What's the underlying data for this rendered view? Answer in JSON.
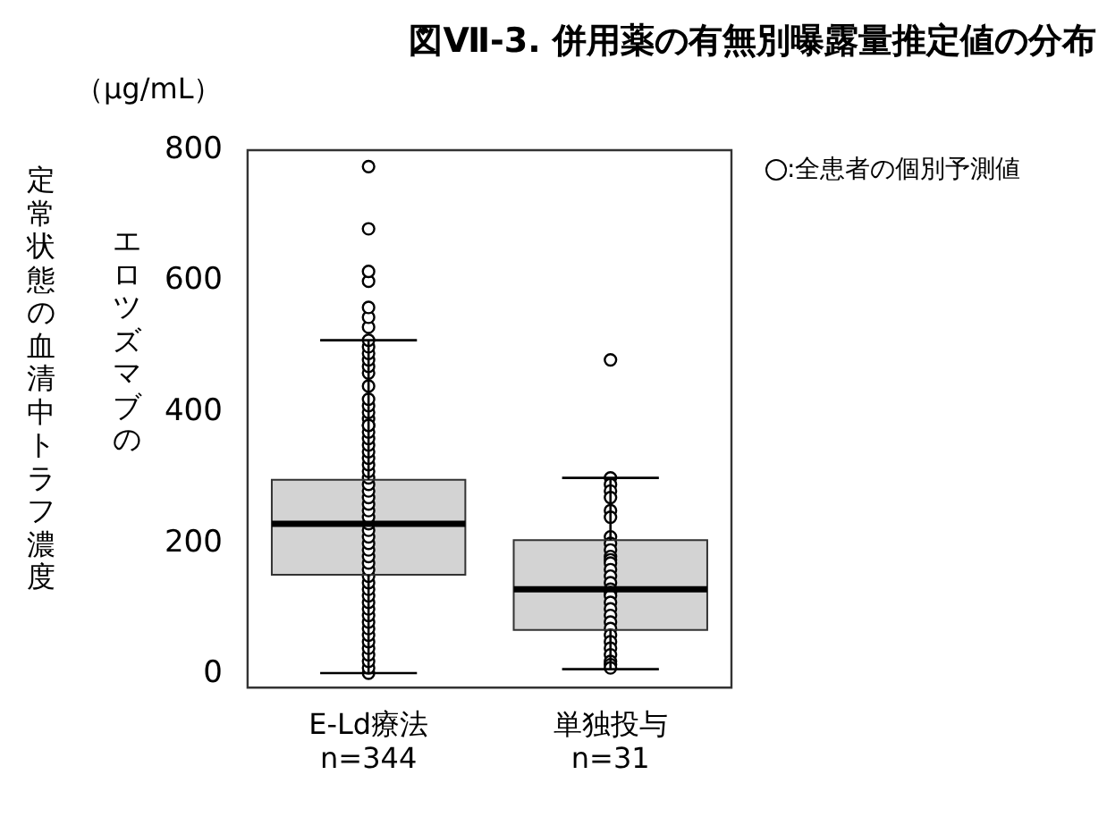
{
  "chart_data": {
    "type": "box",
    "title": "図Ⅶ-3. 併用薬の有無別曝露量推定値の分布",
    "ylabel": "定常状態の血清中トラフ濃度",
    "annotations": [
      "（μg/mL）",
      "エロツズマブの"
    ],
    "categories": [
      "E-Ld療法\nn=344",
      "単独投与\nn=31"
    ],
    "ylim": [
      -20,
      800
    ],
    "yticks": [
      0,
      200,
      400,
      600,
      800
    ],
    "grid": false,
    "legend": "top right",
    "marker": "circle",
    "boxes": [
      {
        "low": 2,
        "q1": 152,
        "median": 230,
        "q3": 297,
        "high": 510
      },
      {
        "low": 8,
        "q1": 68,
        "median": 130,
        "q3": 205,
        "high": 300
      }
    ],
    "color": "#d3d3d3",
    "series": [
      {
        "name": ":全患者の個別予測値",
        "type": "scatter",
        "color": "#000000",
        "x": [
          "E-Ld療法\nn=344",
          "E-Ld療法\nn=344",
          "E-Ld療法\nn=344",
          "E-Ld療法\nn=344",
          "E-Ld療法\nn=344",
          "E-Ld療法\nn=344",
          "E-Ld療法\nn=344",
          "E-Ld療法\nn=344",
          "E-Ld療法\nn=344",
          "E-Ld療法\nn=344",
          "E-Ld療法\nn=344",
          "E-Ld療法\nn=344",
          "E-Ld療法\nn=344",
          "E-Ld療法\nn=344",
          "E-Ld療法\nn=344",
          "E-Ld療法\nn=344",
          "E-Ld療法\nn=344",
          "E-Ld療法\nn=344",
          "E-Ld療法\nn=344",
          "E-Ld療法\nn=344",
          "E-Ld療法\nn=344",
          "E-Ld療法\nn=344",
          "E-Ld療法\nn=344",
          "E-Ld療法\nn=344",
          "E-Ld療法\nn=344",
          "E-Ld療法\nn=344",
          "E-Ld療法\nn=344",
          "E-Ld療法\nn=344",
          "E-Ld療法\nn=344",
          "E-Ld療法\nn=344",
          "E-Ld療法\nn=344",
          "E-Ld療法\nn=344",
          "E-Ld療法\nn=344",
          "E-Ld療法\nn=344",
          "E-Ld療法\nn=344",
          "E-Ld療法\nn=344",
          "E-Ld療法\nn=344",
          "E-Ld療法\nn=344",
          "E-Ld療法\nn=344",
          "E-Ld療法\nn=344",
          "E-Ld療法\nn=344",
          "E-Ld療法\nn=344",
          "E-Ld療法\nn=344",
          "E-Ld療法\nn=344",
          "E-Ld療法\nn=344",
          "E-Ld療法\nn=344",
          "E-Ld療法\nn=344",
          "E-Ld療法\nn=344",
          "E-Ld療法\nn=344",
          "E-Ld療法\nn=344",
          "E-Ld療法\nn=344",
          "E-Ld療法\nn=344",
          "E-Ld療法\nn=344",
          "E-Ld療法\nn=344",
          "E-Ld療法\nn=344",
          "E-Ld療法\nn=344",
          "E-Ld療法\nn=344",
          "E-Ld療法\nn=344",
          "単独投与\nn=31",
          "単独投与\nn=31",
          "単独投与\nn=31",
          "単独投与\nn=31",
          "単独投与\nn=31",
          "単独投与\nn=31",
          "単独投与\nn=31",
          "単独投与\nn=31",
          "単独投与\nn=31",
          "単独投与\nn=31",
          "単独投与\nn=31",
          "単独投与\nn=31",
          "単独投与\nn=31",
          "単独投与\nn=31",
          "単独投与\nn=31",
          "単独投与\nn=31",
          "単独投与\nn=31",
          "単独投与\nn=31",
          "単独投与\nn=31",
          "単独投与\nn=31",
          "単独投与\nn=31",
          "単独投与\nn=31",
          "単独投与\nn=31",
          "単独投与\nn=31",
          "単独投与\nn=31",
          "単独投与\nn=31",
          "単独投与\nn=31",
          "単独投与\nn=31",
          "単独投与\nn=31",
          "単独投与\nn=31",
          "単独投与\nn=31"
        ],
        "values": [
          2,
          10,
          20,
          30,
          40,
          50,
          60,
          70,
          80,
          90,
          100,
          110,
          120,
          130,
          140,
          150,
          160,
          170,
          180,
          190,
          200,
          210,
          220,
          230,
          240,
          250,
          260,
          270,
          280,
          290,
          300,
          310,
          320,
          330,
          340,
          350,
          360,
          370,
          380,
          390,
          400,
          410,
          420,
          440,
          460,
          470,
          480,
          490,
          500,
          510,
          530,
          545,
          560,
          600,
          615,
          680,
          775,
          380,
          480,
          300,
          290,
          280,
          270,
          250,
          240,
          210,
          200,
          190,
          180,
          175,
          170,
          160,
          150,
          140,
          130,
          125,
          120,
          110,
          100,
          90,
          80,
          70,
          60,
          50,
          40,
          30,
          20,
          15,
          10
        ]
      }
    ]
  }
}
